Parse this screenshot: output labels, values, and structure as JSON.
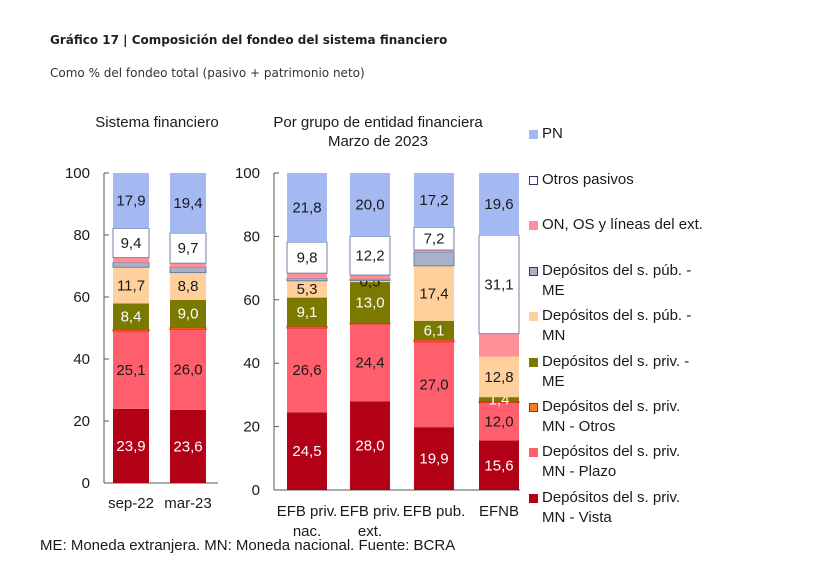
{
  "header": {
    "title": "Gráfico 17 | Composición del fondeo del sistema financiero",
    "subtitle": "Como % del fondeo total (pasivo + patrimonio neto)"
  },
  "footnote": "ME: Moneda extranjera. MN: Moneda nacional. Fuente: BCRA",
  "chart_data": [
    {
      "type": "bar",
      "stacked": true,
      "title": "Sistema financiero",
      "xlabel": "",
      "ylabel": "",
      "ylim": [
        0,
        100
      ],
      "yticks": [
        0,
        20,
        40,
        60,
        80,
        100
      ],
      "categories": [
        "sep-22",
        "mar-23"
      ],
      "series": [
        {
          "name": "Depósitos del s. priv. MN - Vista",
          "values": [
            23.9,
            23.6
          ],
          "labels": [
            "23,9",
            "23,6"
          ]
        },
        {
          "name": "Depósitos del s. priv. MN - Plazo",
          "values": [
            25.1,
            26.0
          ],
          "labels": [
            "25,1",
            "26,0"
          ]
        },
        {
          "name": "Depósitos del s. priv. MN - Otros",
          "values": [
            0.5,
            0.5
          ],
          "labels": [
            "",
            ""
          ]
        },
        {
          "name": "Depósitos del s. priv. - ME",
          "values": [
            8.4,
            9.0
          ],
          "labels": [
            "8,4",
            "9,0"
          ]
        },
        {
          "name": "Depósitos del s. púb. - MN",
          "values": [
            11.7,
            8.8
          ],
          "labels": [
            "11,7",
            "8,8"
          ]
        },
        {
          "name": "Depósitos del s. púb. - ME",
          "values": [
            1.5,
            1.8
          ],
          "labels": [
            "",
            ""
          ]
        },
        {
          "name": "ON, OS y líneas del ext.",
          "values": [
            1.6,
            1.2
          ],
          "labels": [
            "",
            ""
          ]
        },
        {
          "name": "Otros pasivos",
          "values": [
            9.4,
            9.7
          ],
          "labels": [
            "9,4",
            "9,7"
          ]
        },
        {
          "name": "PN",
          "values": [
            17.9,
            19.4
          ],
          "labels": [
            "17,9",
            "19,4"
          ]
        }
      ]
    },
    {
      "type": "bar",
      "stacked": true,
      "title": "Por grupo de entidad financiera\nMarzo de 2023",
      "title_lines": [
        "Por grupo de entidad financiera",
        "Marzo de 2023"
      ],
      "xlabel": "",
      "ylabel": "",
      "ylim": [
        0,
        100
      ],
      "yticks": [
        0,
        20,
        40,
        60,
        80,
        100
      ],
      "categories": [
        "EFB priv. nac.",
        "EFB priv. ext.",
        "EFB pub.",
        "EFNB"
      ],
      "category_lines": [
        [
          "EFB priv.",
          "nac."
        ],
        [
          "EFB priv.",
          "ext."
        ],
        [
          "EFB pub."
        ],
        [
          "EFNB"
        ]
      ],
      "series": [
        {
          "name": "Depósitos del s. priv. MN - Vista",
          "values": [
            24.5,
            28.0,
            19.9,
            15.6
          ],
          "labels": [
            "24,5",
            "28,0",
            "19,9",
            "15,6"
          ]
        },
        {
          "name": "Depósitos del s. priv. MN - Plazo",
          "values": [
            26.6,
            24.4,
            27.0,
            12.0
          ],
          "labels": [
            "26,6",
            "24,4",
            "27,0",
            "12,0"
          ]
        },
        {
          "name": "Depósitos del s. priv. MN - Otros",
          "values": [
            0.5,
            0.2,
            0.6,
            0.3
          ],
          "labels": [
            "",
            "",
            "",
            ""
          ]
        },
        {
          "name": "Depósitos del s. priv. - ME",
          "values": [
            9.1,
            13.0,
            6.1,
            1.4
          ],
          "labels": [
            "9,1",
            "13,0",
            "6,1",
            "1,4"
          ]
        },
        {
          "name": "Depósitos del s. púb. - MN",
          "values": [
            5.3,
            0.5,
            17.4,
            12.8
          ],
          "labels": [
            "5,3",
            "0,5",
            "17,4",
            "12,8"
          ]
        },
        {
          "name": "Depósitos del s. púb. - ME",
          "values": [
            0.8,
            0.5,
            4.4,
            0.0
          ],
          "labels": [
            "",
            "",
            "",
            ""
          ]
        },
        {
          "name": "ON, OS y líneas del ext.",
          "values": [
            1.6,
            1.2,
            0.6,
            7.2
          ],
          "labels": [
            "",
            "",
            "",
            ""
          ]
        },
        {
          "name": "Otros pasivos",
          "values": [
            9.8,
            12.2,
            7.2,
            31.1
          ],
          "labels": [
            "9,8",
            "12,2",
            "7,2",
            "31,1"
          ]
        },
        {
          "name": "PN",
          "values": [
            21.8,
            20.0,
            17.2,
            19.6
          ],
          "labels": [
            "21,8",
            "20,0",
            "17,2",
            "19,6"
          ]
        }
      ]
    }
  ],
  "series_styles": [
    {
      "name": "Depósitos del s. priv. MN - Vista",
      "fill": "#b20016",
      "stroke": "none",
      "label_color": "#ffffff"
    },
    {
      "name": "Depósitos del s. priv. MN - Plazo",
      "fill": "#ff5f6d",
      "stroke": "none",
      "label_color": "#1a1a1a"
    },
    {
      "name": "Depósitos del s. priv. MN - Otros",
      "fill": "#ff7a1a",
      "stroke": "#e03020",
      "label_color": "#1a1a1a"
    },
    {
      "name": "Depósitos del s. priv. - ME",
      "fill": "#7a7a00",
      "stroke": "none",
      "label_color": "#ffffff"
    },
    {
      "name": "Depósitos del s. púb. - MN",
      "fill": "#ffd09b",
      "stroke": "none",
      "label_color": "#1a1a1a"
    },
    {
      "name": "Depósitos del s. púb. - ME",
      "fill": "#a6b2c9",
      "stroke": "#6f7fa0",
      "label_color": "#1a1a1a"
    },
    {
      "name": "ON, OS y líneas del ext.",
      "fill": "#ff8f98",
      "stroke": "none",
      "label_color": "#1a1a1a"
    },
    {
      "name": "Otros pasivos",
      "fill": "#ffffff",
      "stroke": "#7382a8",
      "label_color": "#1a1a1a"
    },
    {
      "name": "PN",
      "fill": "#a4b8f2",
      "stroke": "none",
      "label_color": "#1a1a1a"
    }
  ],
  "legend": {
    "placement": "right",
    "items": [
      {
        "label_lines": [
          "PN"
        ],
        "fill": "#a4b8f2",
        "stroke": "#a4b8f2"
      },
      {
        "label_lines": [
          "Otros pasivos"
        ],
        "fill": "#ffffff",
        "stroke": "#2a3560"
      },
      {
        "label_lines": [
          "ON, OS y líneas del ext."
        ],
        "fill": "#ff8f98",
        "stroke": "#ff8f98"
      },
      {
        "label_lines": [
          "Depósitos del s. púb. -",
          "ME"
        ],
        "fill": "#a6b2c9",
        "stroke": "#2a3560"
      },
      {
        "label_lines": [
          "Depósitos del s. púb. -",
          "MN"
        ],
        "fill": "#ffd09b",
        "stroke": "#ffd09b"
      },
      {
        "label_lines": [
          "Depósitos del s. priv. -",
          "ME"
        ],
        "fill": "#7a7a00",
        "stroke": "#7a7a00"
      },
      {
        "label_lines": [
          "Depósitos del s. priv.",
          "MN - Otros"
        ],
        "fill": "#ff7a1a",
        "stroke": "#c02000"
      },
      {
        "label_lines": [
          "Depósitos del s. priv.",
          "MN - Plazo"
        ],
        "fill": "#ff5f6d",
        "stroke": "#ff5f6d"
      },
      {
        "label_lines": [
          "Depósitos del s. priv.",
          "MN - Vista"
        ],
        "fill": "#b20016",
        "stroke": "#b20016"
      }
    ]
  }
}
